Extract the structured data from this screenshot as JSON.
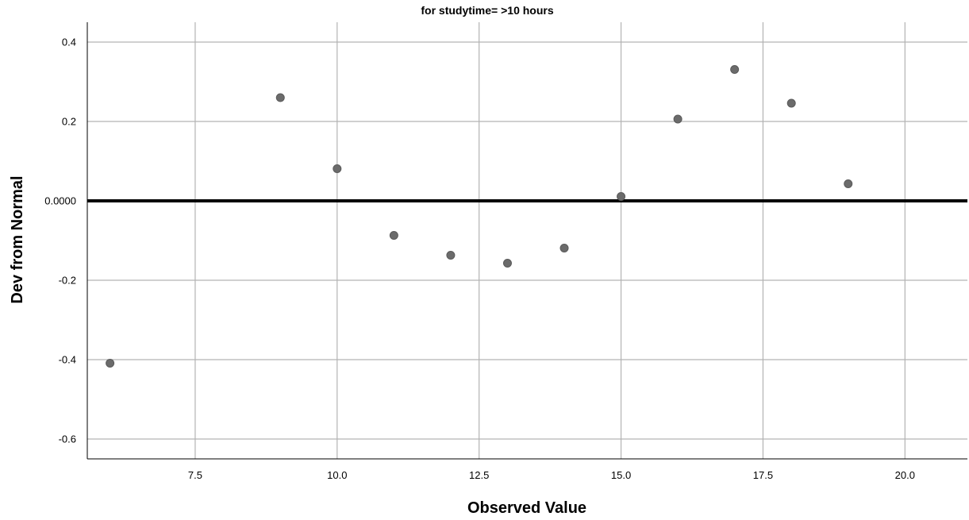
{
  "chart_data": {
    "type": "scatter",
    "title": "for studytime= >10 hours",
    "xlabel": "Observed Value",
    "ylabel": "Dev from Normal",
    "xlim": [
      5.6,
      21.1
    ],
    "ylim": [
      -0.65,
      0.45
    ],
    "xticks": [
      7.5,
      10.0,
      12.5,
      15.0,
      17.5,
      20.0
    ],
    "xtick_labels": [
      "7.5",
      "10.0",
      "12.5",
      "15.0",
      "17.5",
      "20.0"
    ],
    "yticks": [
      0.4,
      0.2,
      0.0,
      -0.2,
      -0.4,
      -0.6
    ],
    "ytick_labels": [
      "0.4",
      "0.2",
      "0.0000",
      "-0.2",
      "-0.4",
      "-0.6"
    ],
    "reference_line_y": 0.0,
    "grid": true,
    "point_color": "#6b6b6b",
    "x": [
      6,
      9,
      10,
      11,
      12,
      13,
      14,
      15,
      16,
      17,
      18,
      19
    ],
    "y": [
      -0.409,
      0.26,
      0.081,
      -0.087,
      -0.137,
      -0.157,
      -0.119,
      0.011,
      0.206,
      0.331,
      0.246,
      0.043
    ]
  }
}
